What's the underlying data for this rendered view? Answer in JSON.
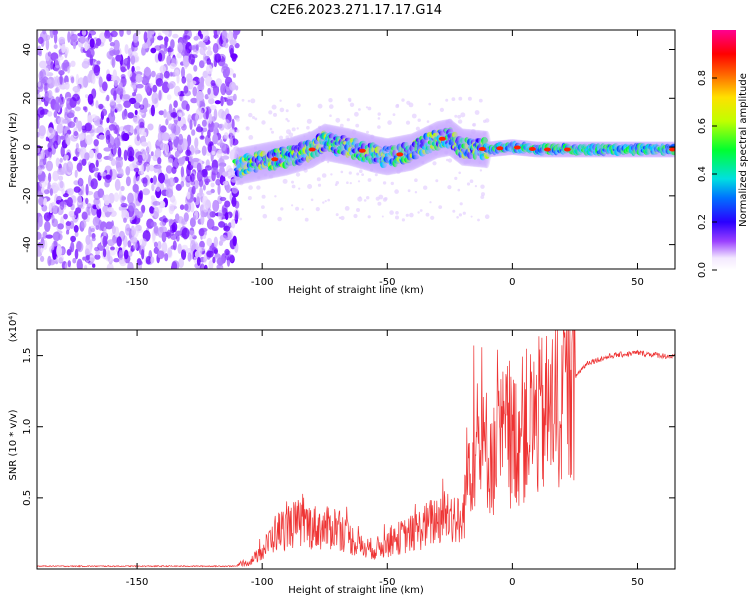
{
  "title": "C2E6.2023.271.17.17.G14",
  "chart_data": [
    {
      "type": "heatmap",
      "xlabel": "Height of straight line (km)",
      "ylabel": "Frequency (Hz)",
      "xlim": [
        -190,
        65
      ],
      "ylim": [
        -50,
        48
      ],
      "xticks": [
        -150,
        -100,
        -50,
        0,
        50
      ],
      "yticks": [
        -40,
        -20,
        0,
        20,
        40
      ],
      "grid": false,
      "colorbar": {
        "label": "Normalized spectral amplitude",
        "range": [
          0,
          1
        ],
        "ticks": [
          "0.0",
          "0.2",
          "0.4",
          "0.6",
          "0.8"
        ]
      },
      "ridge": {
        "x": [
          -110,
          -100,
          -90,
          -80,
          -75,
          -65,
          -55,
          -50,
          -40,
          -30,
          -25,
          -20,
          -10,
          0,
          10,
          20,
          40,
          65
        ],
        "freq": [
          -8,
          -6,
          -4,
          -1,
          2,
          0,
          -3,
          -4,
          -2,
          3,
          4,
          0,
          -1,
          0,
          -1,
          -1,
          -1,
          -1
        ]
      },
      "noise_region_x": [
        -190,
        -110
      ]
    },
    {
      "type": "line",
      "xlabel": "Height of straight line (km)",
      "ylabel": "SNR (10 * v/v)",
      "y_multiplier": "(x10⁴)",
      "xlim": [
        -190,
        65
      ],
      "ylim": [
        0,
        1.68
      ],
      "xticks": [
        -150,
        -100,
        -50,
        0,
        50
      ],
      "yticks": [
        0.5,
        1.0,
        1.5
      ],
      "ytick_labels": [
        "0.5",
        "1.0",
        "1.5"
      ],
      "grid": false,
      "series": [
        {
          "color": "#ee3333",
          "x": [
            -190,
            -170,
            -150,
            -130,
            -110,
            -105,
            -100,
            -95,
            -90,
            -85,
            -80,
            -75,
            -70,
            -65,
            -60,
            -55,
            -50,
            -45,
            -40,
            -35,
            -30,
            -25,
            -20,
            -18,
            -15,
            -12,
            -10,
            -7,
            -5,
            -2,
            0,
            5,
            10,
            15,
            20,
            25,
            30,
            40,
            50,
            65
          ],
          "y": [
            0.02,
            0.02,
            0.02,
            0.02,
            0.02,
            0.05,
            0.12,
            0.25,
            0.3,
            0.32,
            0.3,
            0.28,
            0.3,
            0.22,
            0.15,
            0.14,
            0.18,
            0.22,
            0.25,
            0.3,
            0.35,
            0.4,
            0.3,
            0.7,
            0.9,
            0.8,
            0.85,
            0.75,
            0.9,
            0.95,
            0.9,
            1.0,
            1.05,
            1.1,
            1.2,
            1.35,
            1.45,
            1.5,
            1.52,
            1.49
          ]
        }
      ]
    }
  ]
}
